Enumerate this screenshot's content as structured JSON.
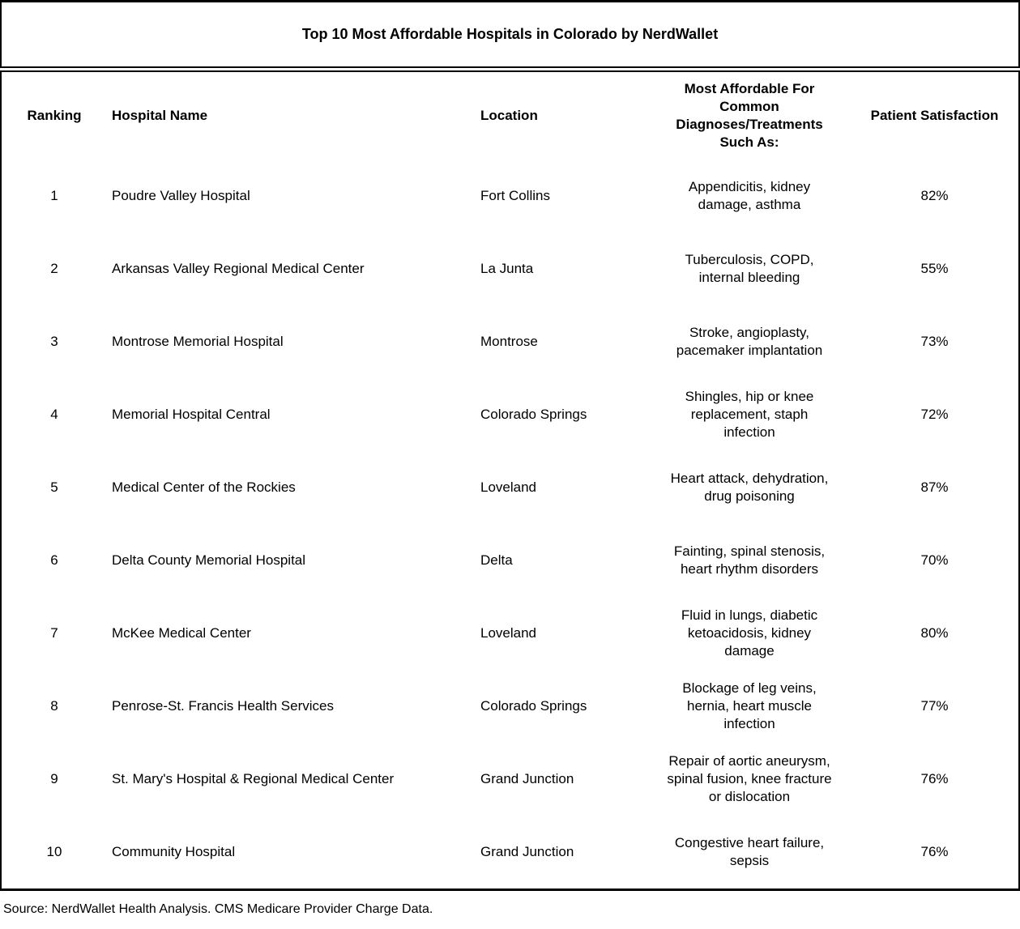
{
  "chart_data": {
    "type": "table",
    "title": "Top 10 Most Affordable Hospitals in Colorado by NerdWallet",
    "columns": [
      "Ranking",
      "Hospital Name",
      "Location",
      "Most Affordable For Common Diagnoses/Treatments Such As:",
      "Patient Satisfaction"
    ],
    "rows": [
      [
        "1",
        "Poudre Valley Hospital",
        "Fort Collins",
        "Appendicitis, kidney damage, asthma",
        "82%"
      ],
      [
        "2",
        "Arkansas Valley Regional Medical Center",
        "La Junta",
        "Tuberculosis, COPD, internal bleeding",
        "55%"
      ],
      [
        "3",
        "Montrose Memorial Hospital",
        "Montrose",
        "Stroke, angioplasty, pacemaker implantation",
        "73%"
      ],
      [
        "4",
        "Memorial Hospital Central",
        "Colorado Springs",
        "Shingles, hip or knee replacement, staph infection",
        "72%"
      ],
      [
        "5",
        "Medical Center of the Rockies",
        "Loveland",
        "Heart attack, dehydration, drug poisoning",
        "87%"
      ],
      [
        "6",
        "Delta County Memorial Hospital",
        "Delta",
        "Fainting, spinal stenosis, heart rhythm disorders",
        "70%"
      ],
      [
        "7",
        "McKee Medical Center",
        "Loveland",
        "Fluid in lungs, diabetic ketoacidosis, kidney damage",
        "80%"
      ],
      [
        "8",
        "Penrose-St. Francis Health Services",
        "Colorado Springs",
        "Blockage of leg veins, hernia, heart muscle infection",
        "77%"
      ],
      [
        "9",
        "St. Mary's Hospital & Regional Medical Center",
        "Grand Junction",
        "Repair of aortic aneurysm, spinal fusion, knee fracture or dislocation",
        "76%"
      ],
      [
        "10",
        "Community Hospital",
        "Grand Junction",
        "Congestive heart failure, sepsis",
        "76%"
      ]
    ],
    "source": "Source: NerdWallet Health Analysis. CMS Medicare Provider Charge Data.",
    "layout_hints": {
      "grid": "off",
      "header_position": "top",
      "ranking_alignment": "center",
      "satisfaction_alignment": "center"
    }
  },
  "display": {
    "diagnoses_header_wrapped": "Most Affordable For\nCommon\nDiagnoses/Treatments\nSuch As:",
    "diagnoses_wrapped": [
      "Appendicitis, kidney\ndamage, asthma",
      "Tuberculosis, COPD,\ninternal bleeding",
      "Stroke, angioplasty,\npacemaker implantation",
      "Shingles, hip or knee\nreplacement, staph\ninfection",
      "Heart attack, dehydration,\ndrug poisoning",
      "Fainting, spinal stenosis,\nheart rhythm disorders",
      "Fluid in lungs, diabetic\nketoacidosis, kidney\ndamage",
      "Blockage of leg veins,\nhernia, heart muscle\ninfection",
      "Repair of aortic aneurysm,\nspinal fusion, knee fracture\nor dislocation",
      "Congestive heart failure,\nsepsis"
    ]
  },
  "colors": {
    "text": "#000000",
    "background": "#ffffff",
    "border": "#000000"
  }
}
